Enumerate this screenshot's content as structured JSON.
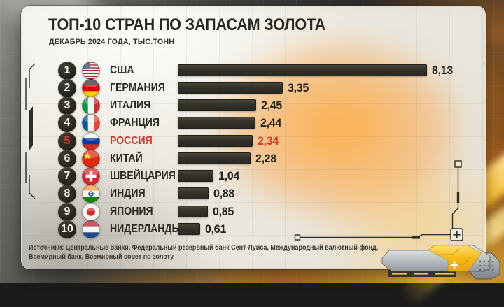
{
  "header": {
    "title": "ТОП-10 СТРАН ПО ЗАПАСАМ ЗОЛОТА",
    "subtitle": "ДЕКАБРЬ 2024 ГОДА, ТЫС.ТОНН"
  },
  "footer": {
    "sources_line1": "Источники: Центральные банки, Федеральный резервный банк Сент-Луиса, Международный валютный фонд,",
    "sources_line2": "Всемирный банк, Всемирный совет по золоту"
  },
  "colors": {
    "accent": "#d5372c",
    "bar": "#34322a",
    "panel": "#ece9e1",
    "title_text": "#292720"
  },
  "chart_data": {
    "type": "bar",
    "orientation": "horizontal",
    "title": "ТОП-10 СТРАН ПО ЗАПАСАМ ЗОЛОТА",
    "subtitle": "ДЕКАБРЬ 2024 ГОДА, ТЫС.ТОНН",
    "unit": "тыс. тонн",
    "xlabel": "",
    "ylabel": "",
    "xlim": [
      0,
      8.5
    ],
    "grid": false,
    "legend": null,
    "categories": [
      "США",
      "ГЕРМАНИЯ",
      "ИТАЛИЯ",
      "ФРАНЦИЯ",
      "РОССИЯ",
      "КИТАЙ",
      "ШВЕЙЦАРИЯ",
      "ИНДИЯ",
      "ЯПОНИЯ",
      "НИДЕРЛАНДЫ"
    ],
    "values": [
      8.13,
      3.35,
      2.45,
      2.44,
      2.34,
      2.28,
      1.04,
      0.88,
      0.85,
      0.61
    ],
    "highlight_index": 4,
    "rows": [
      {
        "rank": "1",
        "country": "США",
        "flag": "usa",
        "value": 8.13,
        "value_label": "8,13",
        "highlight": false
      },
      {
        "rank": "2",
        "country": "ГЕРМАНИЯ",
        "flag": "germany",
        "value": 3.35,
        "value_label": "3,35",
        "highlight": false
      },
      {
        "rank": "3",
        "country": "ИТАЛИЯ",
        "flag": "italy",
        "value": 2.45,
        "value_label": "2,45",
        "highlight": false
      },
      {
        "rank": "4",
        "country": "ФРАНЦИЯ",
        "flag": "france",
        "value": 2.44,
        "value_label": "2,44",
        "highlight": false
      },
      {
        "rank": "5",
        "country": "РОССИЯ",
        "flag": "russia",
        "value": 2.34,
        "value_label": "2,34",
        "highlight": true
      },
      {
        "rank": "6",
        "country": "КИТАЙ",
        "flag": "china",
        "value": 2.28,
        "value_label": "2,28",
        "highlight": false
      },
      {
        "rank": "7",
        "country": "ШВЕЙЦАРИЯ",
        "flag": "switzerland",
        "value": 1.04,
        "value_label": "1,04",
        "highlight": false
      },
      {
        "rank": "8",
        "country": "ИНДИЯ",
        "flag": "india",
        "value": 0.88,
        "value_label": "0,88",
        "highlight": false
      },
      {
        "rank": "9",
        "country": "ЯПОНИЯ",
        "flag": "japan",
        "value": 0.85,
        "value_label": "0,85",
        "highlight": false
      },
      {
        "rank": "10",
        "country": "НИДЕРЛАНДЫ",
        "flag": "netherlands",
        "value": 0.61,
        "value_label": "0,61",
        "highlight": false
      }
    ]
  }
}
